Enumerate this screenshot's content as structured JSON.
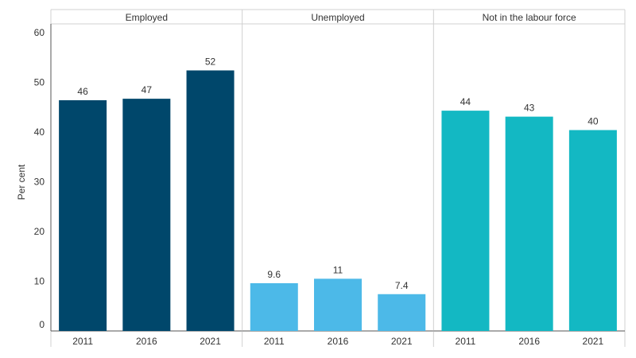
{
  "chart_data": {
    "type": "bar",
    "ylabel": "Per cent",
    "ylim": [
      0,
      60
    ],
    "yticks": [
      0,
      10,
      20,
      30,
      40,
      50,
      60
    ],
    "grid": false,
    "panels": [
      {
        "name": "Employed",
        "color": "#00476b",
        "categories": [
          "2011",
          "2016",
          "2021"
        ],
        "values": [
          46.4,
          46.7,
          52.4
        ],
        "labels": [
          "46",
          "47",
          "52"
        ]
      },
      {
        "name": "Unemployed",
        "color": "#4cb9e8",
        "categories": [
          "2011",
          "2016",
          "2021"
        ],
        "values": [
          9.6,
          10.5,
          7.4
        ],
        "labels": [
          "9.6",
          "11",
          "7.4"
        ]
      },
      {
        "name": "Not in the labour force",
        "color": "#13b8c3",
        "categories": [
          "2011",
          "2016",
          "2021"
        ],
        "values": [
          44.3,
          43.1,
          40.4
        ],
        "labels": [
          "44",
          "43",
          "40"
        ]
      }
    ]
  }
}
